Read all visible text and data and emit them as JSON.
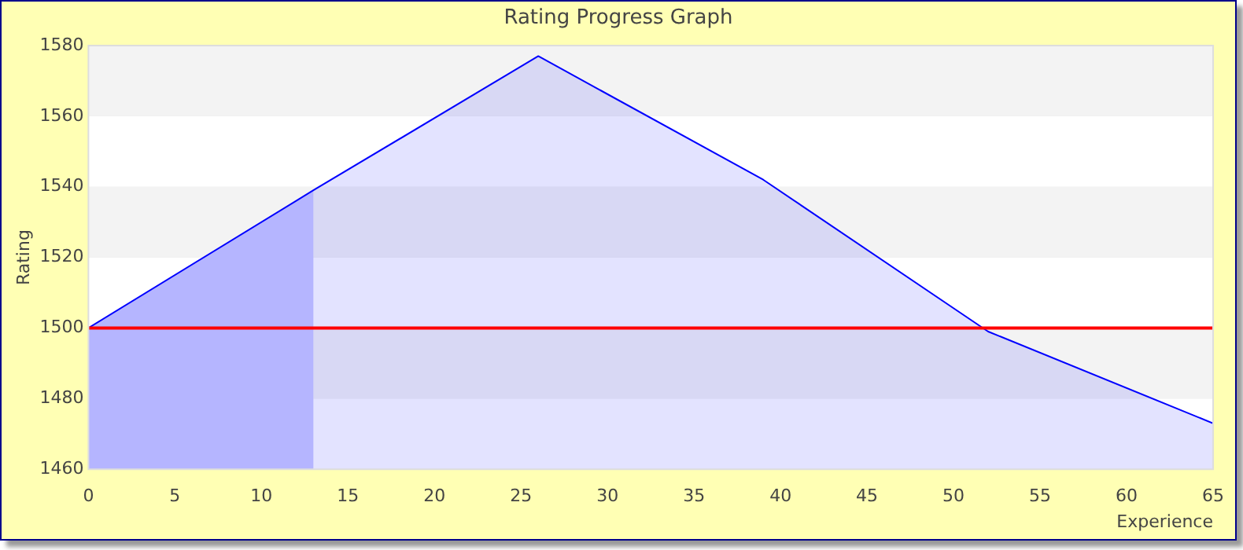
{
  "chart_data": {
    "type": "area",
    "title": "Rating Progress Graph",
    "xlabel": "Experience",
    "ylabel": "Rating",
    "x": [
      0,
      13,
      26,
      39,
      52,
      65
    ],
    "series": [
      {
        "color": "#0000ff",
        "values": [
          1500,
          1539,
          1577,
          1542,
          1499,
          1473
        ]
      }
    ],
    "xlim": [
      0,
      65
    ],
    "xticks": [
      0,
      5,
      10,
      15,
      20,
      25,
      30,
      35,
      40,
      45,
      50,
      55,
      60,
      65
    ],
    "ylim": [
      1460,
      1580
    ],
    "yticks": [
      1460,
      1480,
      1500,
      1520,
      1540,
      1560,
      1580
    ],
    "ref_lines": [
      {
        "axis": "y",
        "value": 1500,
        "color": "#ff0000"
      }
    ],
    "bands": [
      {
        "axis": "x",
        "from": 0,
        "to": 13,
        "color": "#ccccff"
      }
    ],
    "grid": "y",
    "legend": false,
    "marker": "none",
    "line_style": "solid"
  }
}
